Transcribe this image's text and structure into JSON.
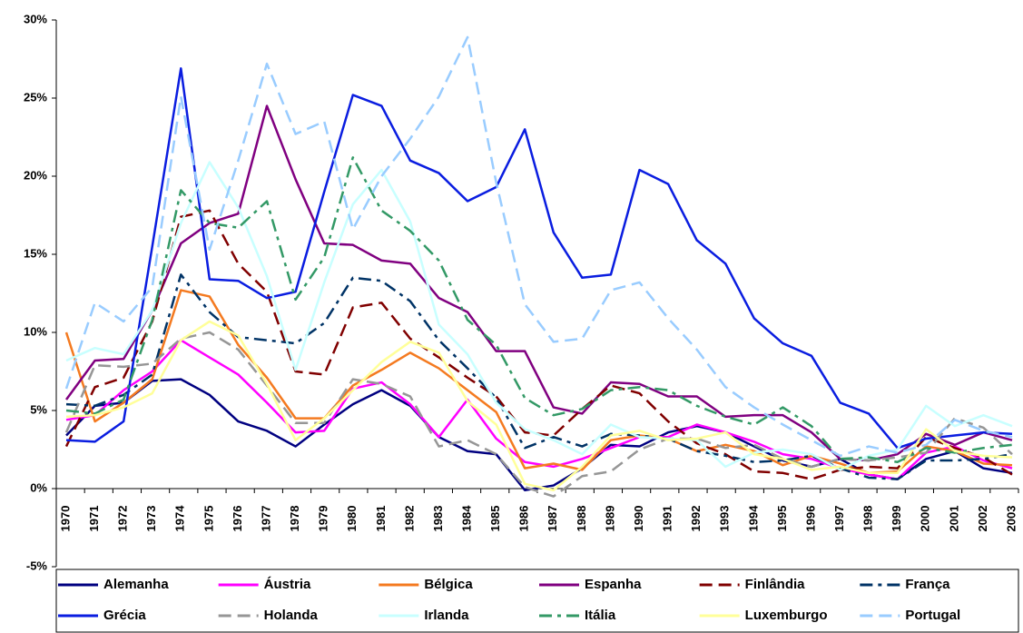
{
  "chart_data": {
    "type": "line",
    "categories": [
      "1970",
      "1971",
      "1972",
      "1973",
      "1974",
      "1975",
      "1976",
      "1977",
      "1978",
      "1979",
      "1980",
      "1981",
      "1982",
      "1983",
      "1984",
      "1985",
      "1986",
      "1987",
      "1988",
      "1989",
      "1990",
      "1991",
      "1992",
      "1993",
      "1994",
      "1995",
      "1996",
      "1997",
      "1998",
      "1999",
      "2000",
      "2001",
      "2002",
      "2003"
    ],
    "ylim": [
      -5,
      30
    ],
    "yticks": [
      {
        "value": -5,
        "label": "-5%"
      },
      {
        "value": 0,
        "label": "0%"
      },
      {
        "value": 5,
        "label": "5%"
      },
      {
        "value": 10,
        "label": "10%"
      },
      {
        "value": 15,
        "label": "15%"
      },
      {
        "value": 20,
        "label": "20%"
      },
      {
        "value": 25,
        "label": "25%"
      },
      {
        "value": 30,
        "label": "30%"
      }
    ],
    "legend": "bottom",
    "series": [
      {
        "name": "Alemanha",
        "color": "#000080",
        "dash": "solid",
        "values": [
          3.4,
          5.3,
          5.5,
          6.9,
          7.0,
          6.0,
          4.3,
          3.7,
          2.7,
          4.1,
          5.4,
          6.3,
          5.3,
          3.3,
          2.4,
          2.2,
          -0.1,
          0.2,
          1.3,
          2.8,
          2.7,
          3.6,
          4.0,
          3.6,
          2.7,
          1.8,
          1.4,
          1.9,
          0.9,
          0.6,
          1.9,
          2.4,
          1.3,
          1.0
        ]
      },
      {
        "name": "Áustria",
        "color": "#ff00ff",
        "dash": "solid",
        "values": [
          4.4,
          4.7,
          6.3,
          7.5,
          9.5,
          8.4,
          7.3,
          5.5,
          3.6,
          3.7,
          6.4,
          6.8,
          5.4,
          3.3,
          5.7,
          3.2,
          1.7,
          1.4,
          1.9,
          2.6,
          3.3,
          3.3,
          4.1,
          3.6,
          3.0,
          2.2,
          1.9,
          1.3,
          0.9,
          0.6,
          2.3,
          2.7,
          1.8,
          1.3
        ]
      },
      {
        "name": "Bélgica",
        "color": "#f47a20",
        "dash": "solid",
        "values": [
          10.0,
          4.3,
          5.5,
          7.0,
          12.7,
          12.3,
          9.2,
          7.1,
          4.5,
          4.5,
          6.6,
          7.6,
          8.7,
          7.7,
          6.3,
          4.9,
          1.3,
          1.6,
          1.2,
          3.1,
          3.4,
          3.2,
          2.4,
          2.8,
          2.4,
          1.5,
          2.1,
          1.6,
          1.0,
          1.1,
          2.7,
          2.4,
          1.6,
          1.5
        ]
      },
      {
        "name": "Espanha",
        "color": "#800080",
        "dash": "solid",
        "values": [
          5.7,
          8.2,
          8.3,
          11.4,
          15.7,
          17.0,
          17.6,
          24.5,
          19.8,
          15.7,
          15.6,
          14.6,
          14.4,
          12.2,
          11.3,
          8.8,
          8.8,
          5.2,
          4.8,
          6.8,
          6.7,
          5.9,
          5.9,
          4.6,
          4.7,
          4.7,
          3.6,
          1.9,
          1.8,
          2.2,
          3.5,
          2.8,
          3.6,
          3.1
        ]
      },
      {
        "name": "Finlândia",
        "color": "#800000",
        "dash": "dash",
        "values": [
          2.7,
          6.5,
          7.1,
          10.7,
          17.4,
          17.8,
          14.4,
          12.6,
          7.5,
          7.3,
          11.6,
          11.9,
          9.6,
          8.4,
          7.1,
          5.9,
          3.6,
          3.4,
          5.1,
          6.6,
          6.1,
          4.3,
          2.9,
          2.2,
          1.1,
          1.0,
          0.6,
          1.2,
          1.4,
          1.3,
          3.3,
          2.6,
          2.0,
          0.9
        ]
      },
      {
        "name": "França",
        "color": "#003366",
        "dash": "dashdot",
        "values": [
          5.4,
          5.3,
          6.0,
          7.3,
          13.7,
          11.3,
          9.7,
          9.5,
          9.3,
          10.6,
          13.5,
          13.3,
          12.0,
          9.5,
          7.7,
          5.8,
          2.6,
          3.3,
          2.7,
          3.5,
          3.4,
          3.2,
          2.4,
          2.1,
          1.7,
          1.8,
          2.1,
          1.3,
          0.7,
          0.6,
          1.8,
          1.8,
          1.9,
          2.2
        ]
      },
      {
        "name": "Grécia",
        "color": "#0a1de0",
        "dash": "solid",
        "values": [
          3.1,
          3.0,
          4.3,
          15.5,
          26.9,
          13.4,
          13.3,
          12.2,
          12.6,
          19.0,
          25.2,
          24.5,
          21.0,
          20.2,
          18.4,
          19.3,
          23.0,
          16.4,
          13.5,
          13.7,
          20.4,
          19.5,
          15.9,
          14.4,
          10.9,
          9.3,
          8.5,
          5.5,
          4.8,
          2.6,
          3.2,
          3.4,
          3.6,
          3.5
        ]
      },
      {
        "name": "Holanda",
        "color": "#969696",
        "dash": "dash",
        "values": [
          3.6,
          7.9,
          7.8,
          8.0,
          9.6,
          10.0,
          8.9,
          6.6,
          4.2,
          4.2,
          7.0,
          6.7,
          5.9,
          2.7,
          3.1,
          2.2,
          0.1,
          -0.5,
          0.8,
          1.1,
          2.5,
          3.2,
          3.2,
          2.6,
          2.8,
          1.9,
          1.4,
          1.9,
          1.8,
          2.0,
          2.3,
          4.5,
          3.9,
          2.2
        ]
      },
      {
        "name": "Irlanda",
        "color": "#c8ffff",
        "dash": "solid",
        "values": [
          8.2,
          9.0,
          8.6,
          11.4,
          17.0,
          20.9,
          18.0,
          13.6,
          7.6,
          13.2,
          18.2,
          20.4,
          17.1,
          10.5,
          8.6,
          5.5,
          3.8,
          3.1,
          2.2,
          4.1,
          3.3,
          3.2,
          3.1,
          1.4,
          2.3,
          2.5,
          2.2,
          1.2,
          2.1,
          2.5,
          5.3,
          4.0,
          4.7,
          4.0
        ]
      },
      {
        "name": "Itália",
        "color": "#339966",
        "dash": "dashdot",
        "values": [
          5.0,
          4.8,
          5.7,
          10.8,
          19.1,
          17.0,
          16.7,
          18.4,
          12.1,
          14.8,
          21.2,
          17.8,
          16.5,
          14.6,
          10.8,
          9.2,
          5.8,
          4.7,
          5.1,
          6.3,
          6.5,
          6.3,
          5.3,
          4.6,
          4.1,
          5.2,
          4.0,
          1.9,
          2.0,
          1.7,
          2.6,
          2.3,
          2.6,
          2.8
        ]
      },
      {
        "name": "Luxemburgo",
        "color": "#ffff99",
        "dash": "solid",
        "values": [
          4.6,
          4.7,
          5.2,
          6.1,
          9.5,
          10.7,
          9.8,
          6.7,
          3.1,
          4.5,
          6.3,
          8.1,
          9.4,
          8.7,
          5.6,
          4.1,
          0.3,
          -0.1,
          1.4,
          3.4,
          3.7,
          3.1,
          3.2,
          3.6,
          2.2,
          1.9,
          1.2,
          1.4,
          1.0,
          1.0,
          3.8,
          2.4,
          2.1,
          2.0
        ]
      },
      {
        "name": "Portugal",
        "color": "#99ccff",
        "dash": "dash",
        "values": [
          6.4,
          11.9,
          10.7,
          12.9,
          25.1,
          15.3,
          21.0,
          27.2,
          22.7,
          23.5,
          16.6,
          20.0,
          22.4,
          25.1,
          28.9,
          19.6,
          11.8,
          9.4,
          9.6,
          12.7,
          13.2,
          10.9,
          8.9,
          6.5,
          5.2,
          4.1,
          3.1,
          2.1,
          2.7,
          2.3,
          2.8,
          4.4,
          3.7,
          3.3
        ]
      }
    ]
  }
}
